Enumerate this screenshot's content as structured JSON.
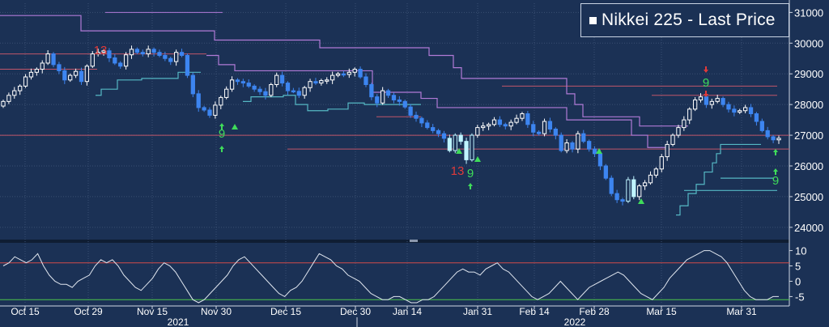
{
  "legend": {
    "label": "Nikkei 225 - Last Price"
  },
  "colors": {
    "background": "#1b3155",
    "grid": "#3a4f72",
    "up_candle": "#ffffff",
    "down_candle": "#3d85f0",
    "highlight_candle": "#bff4ff",
    "upper_staircase": "#b07ad6",
    "lower_staircase": "#55b8c4",
    "support_resistance": "#c0566a",
    "oscillator_line": "#e0e6ef",
    "osc_upper_band": "#d24a4a",
    "osc_lower_band": "#4cc64c",
    "signal_green": "#3fdc5a",
    "signal_red": "#e03a3a"
  },
  "chart_data": [
    {
      "type": "candlestick",
      "series_name": "Nikkei 225 - Last Price",
      "x_axis": {
        "tick_labels": [
          "Oct 15",
          "Oct 29",
          "Nov 15",
          "Nov 30",
          "Dec 15",
          "Dec 30",
          "Jan 14",
          "Jan 31",
          "Feb 14",
          "Feb 28",
          "Mar 15",
          "Mar 31"
        ],
        "year_labels": [
          "2021",
          "2022"
        ]
      },
      "y_axis": {
        "range": [
          23600,
          31300
        ],
        "ticks": [
          24000,
          25000,
          26000,
          27000,
          28000,
          29000,
          30000,
          31000
        ],
        "tick_labels": [
          "24000",
          "25000",
          "26000",
          "27000",
          "28000",
          "29000",
          "30000",
          "31000"
        ],
        "side": "right"
      },
      "closes": [
        28100,
        28300,
        28450,
        28600,
        28900,
        29050,
        29150,
        29350,
        29650,
        29300,
        29100,
        28800,
        28950,
        29080,
        28750,
        29250,
        29650,
        29700,
        29750,
        29520,
        29350,
        29250,
        29620,
        29800,
        29700,
        29650,
        29800,
        29700,
        29600,
        29500,
        29400,
        29700,
        29600,
        28950,
        28350,
        27900,
        27820,
        27650,
        27980,
        28230,
        28500,
        28800,
        28750,
        28700,
        28600,
        28500,
        28420,
        28300,
        28650,
        28950,
        28700,
        28450,
        28430,
        28300,
        28550,
        28750,
        28700,
        28780,
        28800,
        28950,
        29000,
        28980,
        29050,
        29150,
        28900,
        28650,
        28250,
        28050,
        28450,
        28300,
        28150,
        28100,
        27920,
        27650,
        27550,
        27400,
        27250,
        27150,
        27050,
        26900,
        26500,
        27000,
        26800,
        26200,
        27000,
        27250,
        27300,
        27350,
        27500,
        27350,
        27300,
        27420,
        27550,
        27700,
        27350,
        27100,
        27050,
        27450,
        27200,
        27000,
        26500,
        26750,
        26550,
        27050,
        26800,
        26550,
        26400,
        26000,
        25600,
        25100,
        24900,
        24850,
        25550,
        25000,
        25350,
        25450,
        25700,
        25900,
        26300,
        26700,
        27000,
        27250,
        27500,
        27850,
        28150,
        28250,
        28000,
        28100,
        28200,
        28000,
        27850,
        27750,
        27800,
        27900,
        27700,
        27450,
        27150,
        26950,
        26850,
        26900
      ],
      "signal_annotations": [
        {
          "label": "13",
          "color": "red"
        },
        {
          "label": "9",
          "color": "green"
        },
        {
          "label": "13",
          "color": "red"
        },
        {
          "label": "9",
          "color": "green"
        },
        {
          "label": "9",
          "color": "green"
        },
        {
          "label": "9",
          "color": "green"
        }
      ],
      "overlays": [
        {
          "kind": "upper staircase",
          "color": "purple"
        },
        {
          "kind": "lower staircase",
          "color": "teal"
        },
        {
          "kind": "horizontal lines",
          "color": "red"
        }
      ]
    },
    {
      "type": "line",
      "panel": "oscillator",
      "y_axis": {
        "range": [
          -7,
          12
        ],
        "ticks": [
          10,
          5,
          0,
          -5
        ],
        "tick_labels": [
          "10",
          "5",
          "0",
          "-5"
        ],
        "side": "right"
      },
      "bands": {
        "upper": 6,
        "lower": -6
      },
      "values": [
        5,
        6,
        8,
        7,
        6,
        7,
        9,
        5,
        2,
        0,
        -1,
        -1,
        -2,
        0,
        1,
        2,
        5,
        7,
        6,
        7,
        5,
        2,
        0,
        -2,
        -3,
        -1,
        1,
        4,
        6,
        5,
        3,
        0,
        -3,
        -6,
        -7,
        -6,
        -4,
        -2,
        0,
        2,
        5,
        7,
        8,
        6,
        4,
        2,
        0,
        -2,
        -4,
        -5,
        -3,
        -2,
        0,
        3,
        6,
        9,
        8,
        7,
        5,
        4,
        2,
        1,
        0,
        -2,
        -4,
        -5,
        -6,
        -6,
        -5,
        -5,
        -6,
        -7,
        -7,
        -6,
        -6,
        -5,
        -3,
        -1,
        1,
        3,
        4,
        3,
        3,
        2,
        4,
        5,
        6,
        4,
        3,
        1,
        -1,
        -3,
        -5,
        -6,
        -5,
        -4,
        -2,
        0,
        -2,
        -4,
        -6,
        -4,
        -2,
        -1,
        0,
        1,
        2,
        3,
        2,
        0,
        -2,
        -4,
        -5,
        -6,
        -4,
        -2,
        1,
        3,
        5,
        7,
        8,
        9,
        10,
        10,
        9,
        8,
        6,
        3,
        0,
        -3,
        -5,
        -6,
        -6,
        -6,
        -5,
        -5
      ]
    }
  ]
}
